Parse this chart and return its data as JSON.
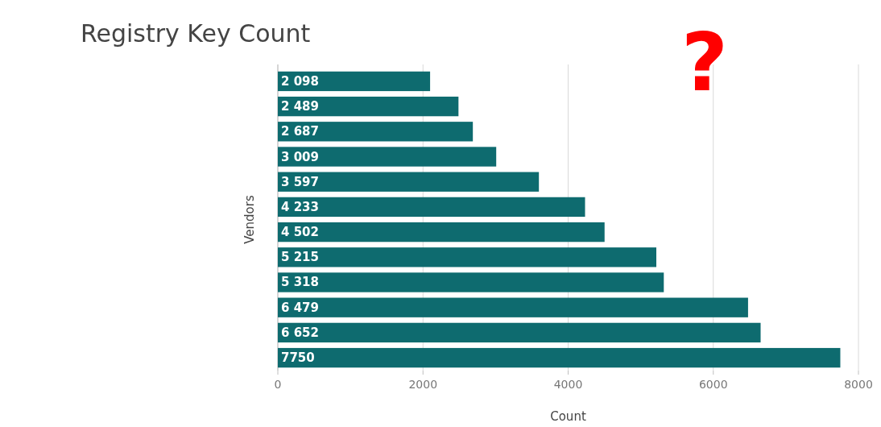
{
  "chart_data": {
    "type": "bar",
    "orientation": "horizontal",
    "title": "Registry Key Count",
    "xlabel": "Count",
    "ylabel": "Vendors",
    "categories": [
      null,
      null,
      null,
      null,
      null,
      null,
      null,
      null,
      null,
      null,
      null,
      null
    ],
    "values": [
      2098,
      2489,
      2687,
      3009,
      3597,
      4233,
      4502,
      5215,
      5318,
      6479,
      6652,
      7750
    ],
    "value_labels": [
      "2 098",
      "2 489",
      "2 687",
      "3 009",
      "3 597",
      "4 233",
      "4 502",
      "5 215",
      "5 318",
      "6 479",
      "6 652",
      "7750"
    ],
    "color": "#0e6b6f",
    "xlim": [
      0,
      8000
    ],
    "xticks": [
      0,
      2000,
      4000,
      6000,
      8000
    ],
    "grid": "x",
    "annotations": [
      "?"
    ]
  }
}
